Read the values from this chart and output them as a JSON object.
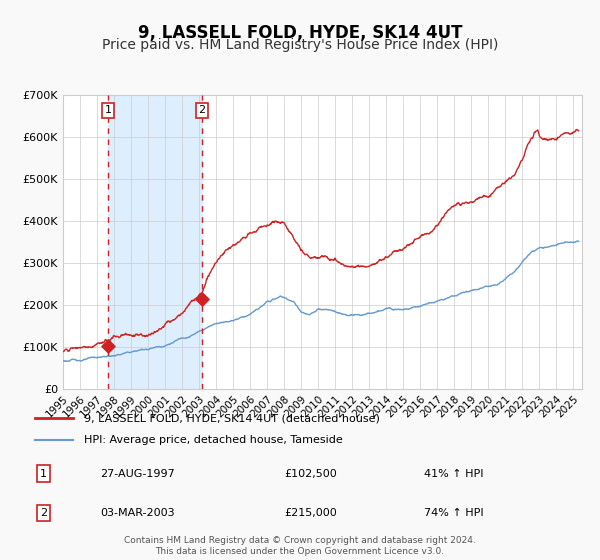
{
  "title": "9, LASSELL FOLD, HYDE, SK14 4UT",
  "subtitle": "Price paid vs. HM Land Registry's House Price Index (HPI)",
  "ylim": [
    0,
    700000
  ],
  "yticks": [
    0,
    100000,
    200000,
    300000,
    400000,
    500000,
    600000,
    700000
  ],
  "ytick_labels": [
    "£0",
    "£100K",
    "£200K",
    "£300K",
    "£400K",
    "£500K",
    "£600K",
    "£700K"
  ],
  "xlim_start": 1995.0,
  "xlim_end": 2025.5,
  "xtick_years": [
    1995,
    1996,
    1997,
    1998,
    1999,
    2000,
    2001,
    2002,
    2003,
    2004,
    2005,
    2006,
    2007,
    2008,
    2009,
    2010,
    2011,
    2012,
    2013,
    2014,
    2015,
    2016,
    2017,
    2018,
    2019,
    2020,
    2021,
    2022,
    2023,
    2024,
    2025
  ],
  "hpi_color": "#6699cc",
  "price_color": "#cc2222",
  "background_color": "#f9f9f9",
  "plot_bg_color": "#ffffff",
  "grid_color": "#cccccc",
  "shade_color": "#ddeeff",
  "vline1_x": 1997.65,
  "vline2_x": 2003.17,
  "point1_x": 1997.65,
  "point1_y": 102500,
  "point2_x": 2003.17,
  "point2_y": 215000,
  "legend_line1": "9, LASSELL FOLD, HYDE, SK14 4UT (detached house)",
  "legend_line2": "HPI: Average price, detached house, Tameside",
  "table_row1": [
    "1",
    "27-AUG-1997",
    "£102,500",
    "41% ↑ HPI"
  ],
  "table_row2": [
    "2",
    "03-MAR-2003",
    "£215,000",
    "74% ↑ HPI"
  ],
  "footer1": "Contains HM Land Registry data © Crown copyright and database right 2024.",
  "footer2": "This data is licensed under the Open Government Licence v3.0.",
  "title_fontsize": 12,
  "subtitle_fontsize": 10
}
